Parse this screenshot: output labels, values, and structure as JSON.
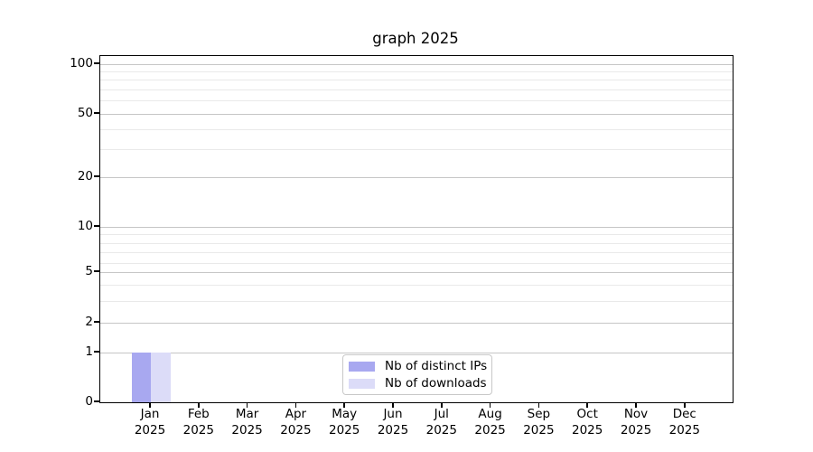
{
  "title": "graph 2025",
  "colors": {
    "background": "#ffffff",
    "axis": "#000000",
    "text": "#000000",
    "grid_major": "#c6c6c6",
    "grid_minor": "#e9e9e9",
    "legend_border": "#c8c8c8"
  },
  "chart_data": {
    "type": "bar",
    "title": "graph 2025",
    "categories": [
      "Jan 2025",
      "Feb 2025",
      "Mar 2025",
      "Apr 2025",
      "May 2025",
      "Jun 2025",
      "Jul 2025",
      "Aug 2025",
      "Sep 2025",
      "Oct 2025",
      "Nov 2025",
      "Dec 2025"
    ],
    "series": [
      {
        "name": "Nb of distinct IPs",
        "color": "#a8a8f0",
        "values": [
          1,
          0,
          0,
          0,
          0,
          0,
          0,
          0,
          0,
          0,
          0,
          0
        ]
      },
      {
        "name": "Nb of downloads",
        "color": "#dcdcf8",
        "values": [
          1,
          0,
          0,
          0,
          0,
          0,
          0,
          0,
          0,
          0,
          0,
          0
        ]
      }
    ],
    "xlabel": "",
    "ylabel": "",
    "ylim": [
      0,
      110
    ],
    "grid": "horizontal",
    "legend_position": "bottom-center-inside",
    "y_axis": {
      "scale": "log-like-with-zero",
      "major_ticks": [
        {
          "value": 0,
          "frac": 0.0
        },
        {
          "value": 1,
          "frac": 0.1436
        },
        {
          "value": 2,
          "frac": 0.2298
        },
        {
          "value": 5,
          "frac": 0.376
        },
        {
          "value": 10,
          "frac": 0.5065
        },
        {
          "value": 20,
          "frac": 0.6501
        },
        {
          "value": 50,
          "frac": 0.8329
        },
        {
          "value": 100,
          "frac": 0.9765
        }
      ],
      "minor_ticks": [
        {
          "value": 3,
          "frac": 0.2924
        },
        {
          "value": 4,
          "frac": 0.3394
        },
        {
          "value": 6,
          "frac": 0.402
        },
        {
          "value": 7,
          "frac": 0.433
        },
        {
          "value": 8,
          "frac": 0.4595
        },
        {
          "value": 9,
          "frac": 0.484
        },
        {
          "value": 30,
          "frac": 0.731
        },
        {
          "value": 40,
          "frac": 0.7885
        },
        {
          "value": 60,
          "frac": 0.872
        },
        {
          "value": 70,
          "frac": 0.903
        },
        {
          "value": 80,
          "frac": 0.9308
        },
        {
          "value": 90,
          "frac": 0.9556
        }
      ]
    }
  }
}
